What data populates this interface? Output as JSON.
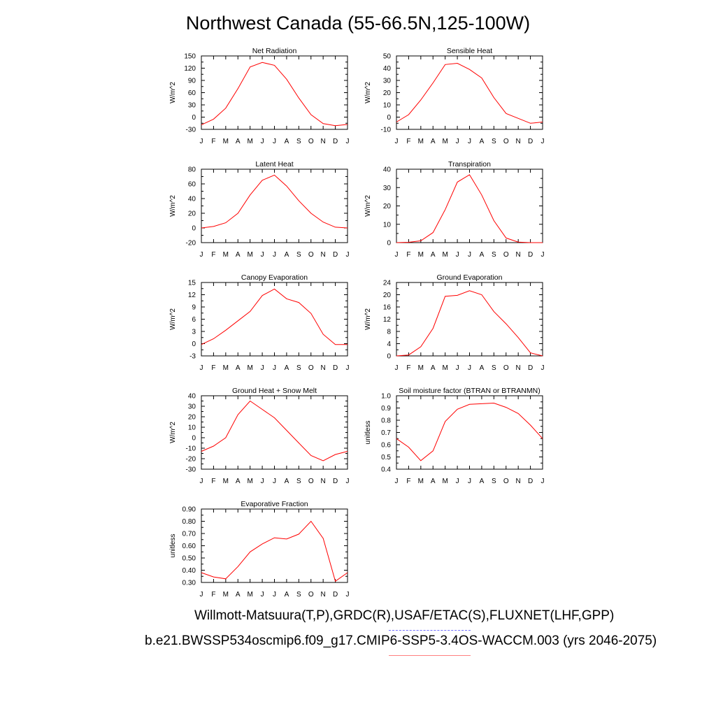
{
  "title": "Northwest Canada (55-66.5N,125-100W)",
  "legend": {
    "line1": "Willmott-Matsuura(T,P),GRDC(R),USAF/ETAC(S),FLUXNET(LHF,GPP)",
    "line2": "b.e21.BWSSP534oscmip6.f09_g17.CMIP6-SSP5-3.4OS-WACCM.003 (yrs 2046-2075)",
    "line1_color": "#7070ff",
    "line2_color": "#ff8080"
  },
  "series_color": "#ff0000",
  "chart_data": [
    {
      "type": "line",
      "title": "Net Radiation",
      "ylabel": "W/m^2",
      "categories": [
        "J",
        "F",
        "M",
        "A",
        "M",
        "J",
        "J",
        "A",
        "S",
        "O",
        "N",
        "D",
        "J"
      ],
      "values": [
        -19,
        -5,
        22,
        70,
        123,
        134,
        127,
        93,
        47,
        6,
        -16,
        -21,
        -18
      ],
      "ylim": [
        -30,
        150
      ],
      "yticks": [
        "-30",
        "0",
        "30",
        "60",
        "90",
        "120",
        "150"
      ]
    },
    {
      "type": "line",
      "title": "Sensible Heat",
      "ylabel": "W/m^2",
      "categories": [
        "J",
        "F",
        "M",
        "A",
        "M",
        "J",
        "J",
        "A",
        "S",
        "O",
        "N",
        "D",
        "J"
      ],
      "values": [
        -4,
        2,
        14,
        28,
        43,
        44,
        39,
        32,
        16,
        3,
        -1,
        -5,
        -4
      ],
      "ylim": [
        -10,
        50
      ],
      "yticks": [
        "-10",
        "0",
        "10",
        "20",
        "30",
        "40",
        "50"
      ]
    },
    {
      "type": "line",
      "title": "Latent Heat",
      "ylabel": "W/m^2",
      "categories": [
        "J",
        "F",
        "M",
        "A",
        "M",
        "J",
        "J",
        "A",
        "S",
        "O",
        "N",
        "D",
        "J"
      ],
      "values": [
        0,
        2,
        7,
        20,
        45,
        65,
        72,
        57,
        37,
        20,
        8,
        1,
        0
      ],
      "ylim": [
        -20,
        80
      ],
      "yticks": [
        "-20",
        "0",
        "20",
        "40",
        "60",
        "80"
      ]
    },
    {
      "type": "line",
      "title": "Transpiration",
      "ylabel": "W/m^2",
      "categories": [
        "J",
        "F",
        "M",
        "A",
        "M",
        "J",
        "J",
        "A",
        "S",
        "O",
        "N",
        "D",
        "J"
      ],
      "values": [
        0,
        0.2,
        1,
        5.5,
        18,
        33,
        37,
        26,
        12,
        2.5,
        0.3,
        0,
        0
      ],
      "ylim": [
        0,
        40
      ],
      "yticks": [
        "0",
        "10",
        "20",
        "30",
        "40"
      ]
    },
    {
      "type": "line",
      "title": "Canopy Evaporation",
      "ylabel": "W/m^2",
      "categories": [
        "J",
        "F",
        "M",
        "A",
        "M",
        "J",
        "J",
        "A",
        "S",
        "O",
        "N",
        "D",
        "J"
      ],
      "values": [
        -0.2,
        1.2,
        3.3,
        5.6,
        7.9,
        11.8,
        13.4,
        11.0,
        10.1,
        7.4,
        2.3,
        -0.2,
        -0.2
      ],
      "ylim": [
        -3,
        15
      ],
      "yticks": [
        "-3",
        "0",
        "3",
        "6",
        "9",
        "12",
        "15"
      ]
    },
    {
      "type": "line",
      "title": "Ground Evaporation",
      "ylabel": "W/m^2",
      "categories": [
        "J",
        "F",
        "M",
        "A",
        "M",
        "J",
        "J",
        "A",
        "S",
        "O",
        "N",
        "D",
        "J"
      ],
      "values": [
        0,
        0.3,
        3,
        9,
        19.5,
        19.8,
        21.3,
        20,
        14.5,
        10.5,
        6,
        1,
        0
      ],
      "ylim": [
        0,
        24
      ],
      "yticks": [
        "0",
        "4",
        "8",
        "12",
        "16",
        "20",
        "24"
      ]
    },
    {
      "type": "line",
      "title": "Ground Heat + Snow Melt",
      "ylabel": "W/m^2",
      "categories": [
        "J",
        "F",
        "M",
        "A",
        "M",
        "J",
        "J",
        "A",
        "S",
        "O",
        "N",
        "D",
        "J"
      ],
      "values": [
        -13,
        -8,
        0,
        22,
        35,
        27,
        19,
        7,
        -5,
        -17,
        -22,
        -16,
        -13
      ],
      "ylim": [
        -30,
        40
      ],
      "yticks": [
        "-30",
        "-20",
        "-10",
        "0",
        "10",
        "20",
        "30",
        "40"
      ]
    },
    {
      "type": "line",
      "title": "Soil moisture factor (BTRAN or BTRANMN)",
      "ylabel": "unitless",
      "categories": [
        "J",
        "F",
        "M",
        "A",
        "M",
        "J",
        "J",
        "A",
        "S",
        "O",
        "N",
        "D",
        "J"
      ],
      "values": [
        0.65,
        0.58,
        0.47,
        0.55,
        0.79,
        0.89,
        0.93,
        0.935,
        0.94,
        0.905,
        0.855,
        0.76,
        0.65
      ],
      "ylim": [
        0.4,
        1.0
      ],
      "yticks": [
        "0.4",
        "0.5",
        "0.6",
        "0.7",
        "0.8",
        "0.9",
        "1.0"
      ]
    },
    {
      "type": "line",
      "title": "Evaporative Fraction",
      "ylabel": "unitless",
      "categories": [
        "J",
        "F",
        "M",
        "A",
        "M",
        "J",
        "J",
        "A",
        "S",
        "O",
        "N",
        "D",
        "J"
      ],
      "values": [
        0.38,
        0.345,
        0.33,
        0.43,
        0.55,
        0.615,
        0.665,
        0.655,
        0.695,
        0.8,
        0.66,
        0.31,
        0.38
      ],
      "ylim": [
        0.3,
        0.9
      ],
      "yticks": [
        "0.30",
        "0.40",
        "0.50",
        "0.60",
        "0.70",
        "0.80",
        "0.90"
      ]
    }
  ]
}
